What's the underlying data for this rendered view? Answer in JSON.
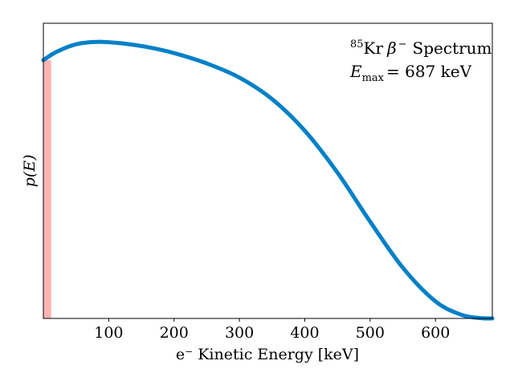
{
  "chart_data": {
    "type": "line",
    "xlabel": "e⁻ Kinetic Energy [keV]",
    "ylabel": "p(E)",
    "xlim": [
      0,
      687
    ],
    "ylim": [
      0,
      1.0
    ],
    "xticks": [
      "100",
      "200",
      "300",
      "400",
      "500",
      "600"
    ],
    "xtick_values": [
      100,
      200,
      300,
      400,
      500,
      600
    ],
    "yticks_shown": false,
    "grid": false,
    "series": [
      {
        "color": "#0080c8",
        "x": [
          0,
          10,
          20,
          40,
          60,
          87,
          120,
          160,
          200,
          250,
          300,
          350,
          400,
          450,
          500,
          550,
          600,
          640,
          670,
          687
        ],
        "y": [
          0.875,
          0.89,
          0.903,
          0.922,
          0.933,
          0.937,
          0.932,
          0.919,
          0.899,
          0.864,
          0.816,
          0.743,
          0.636,
          0.494,
          0.328,
          0.172,
          0.058,
          0.012,
          0.001,
          0.0
        ]
      }
    ],
    "shaded_region": {
      "x0": 0,
      "x1": 12,
      "color": "#ffb3b3"
    },
    "annotations": {
      "line1_sup": "85",
      "line1_element": "Kr",
      "line1_beta": "β",
      "line1_minus": "−",
      "line1_rest": "Spectrum",
      "line2_var": "E",
      "line2_sub": "max",
      "line2_rest": "= 687 keV"
    },
    "annotation_position": "top-right"
  }
}
